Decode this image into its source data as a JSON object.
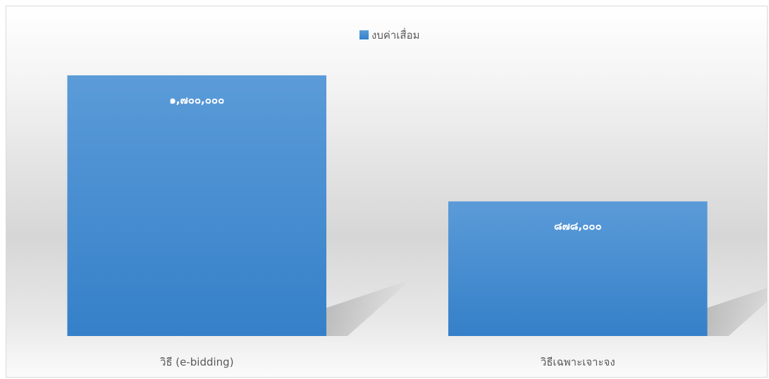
{
  "chart_data": {
    "type": "bar",
    "categories": [
      "วิธี (e-bidding)",
      "วิธีเฉพาะเจาะจง"
    ],
    "series": [
      {
        "name": "งบค่าเสื่อม",
        "values": [
          1700000,
          878000
        ],
        "data_labels": [
          "๑,๗๐๐,๐๐๐",
          "๘๗๘,๐๐๐"
        ]
      }
    ],
    "ylim": [
      0,
      2150000
    ],
    "grid": false,
    "legend_position": "top",
    "bar_color": "#4a90d4",
    "bar_color_dark": "#3580c9"
  }
}
